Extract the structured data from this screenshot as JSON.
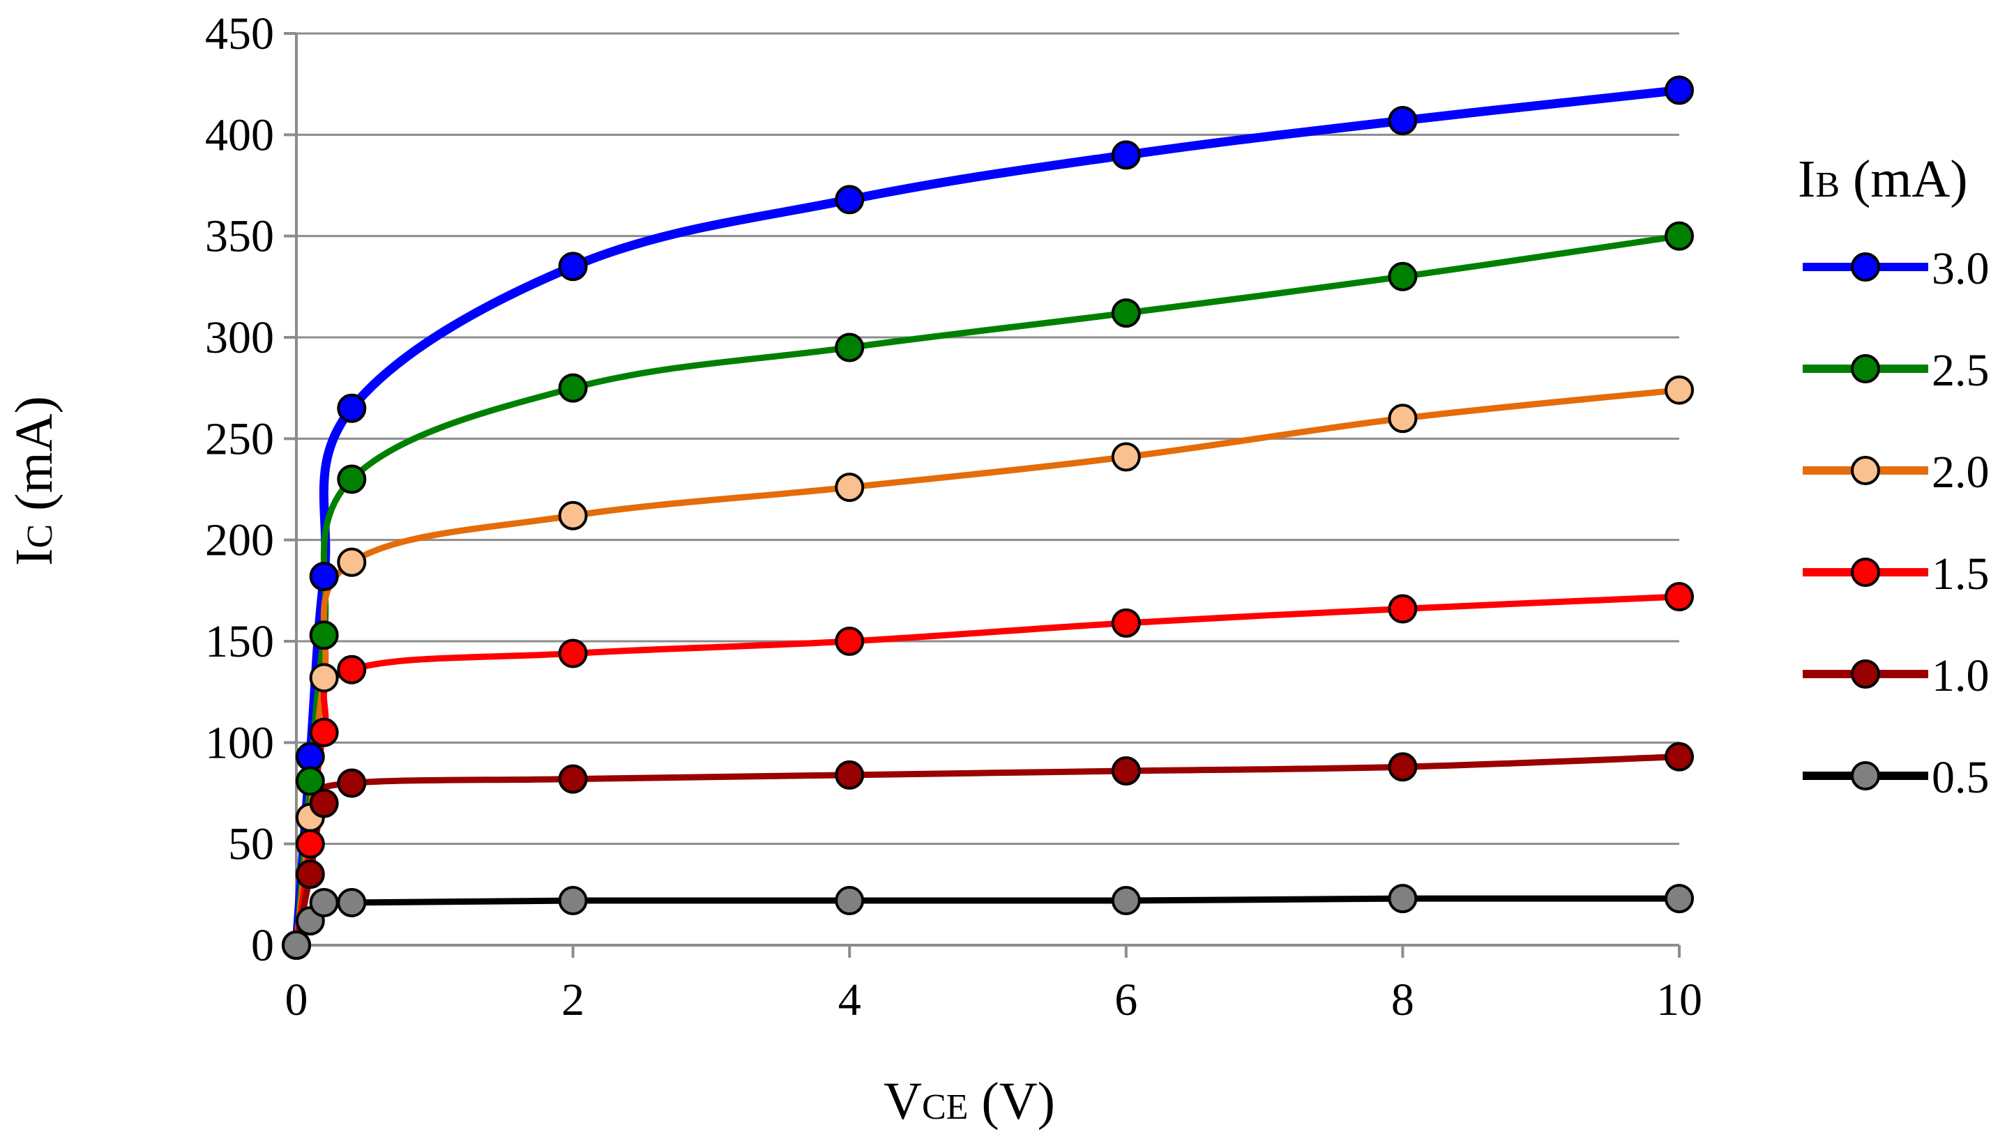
{
  "chart_data": {
    "type": "line",
    "title": "",
    "xlabel": {
      "main": "V",
      "sub": "CE",
      "unit": " (V)"
    },
    "ylabel": {
      "main": "I",
      "sub": "C",
      "unit": " (mA)"
    },
    "xlim": [
      0,
      10
    ],
    "ylim": [
      0,
      450
    ],
    "xticks": [
      0,
      2,
      4,
      6,
      8,
      10
    ],
    "xtick_labels": [
      "0",
      "2",
      "4",
      "6",
      "8",
      "10"
    ],
    "yticks": [
      0,
      50,
      100,
      150,
      200,
      250,
      300,
      350,
      400,
      450
    ],
    "ytick_labels": [
      "0",
      "50",
      "100",
      "150",
      "200",
      "250",
      "300",
      "350",
      "400",
      "450"
    ],
    "grid": "horizontal",
    "legend": {
      "placement": "right",
      "title": {
        "main": "I",
        "sub": "B",
        "unit": " (mA)"
      }
    },
    "series": [
      {
        "name": "3.0",
        "line_color": "#0000FF",
        "marker_color": "#0000FF",
        "x": [
          0,
          0.1,
          0.2,
          0.4,
          2,
          4,
          6,
          8,
          10
        ],
        "y": [
          0,
          93,
          182,
          265,
          335,
          368,
          390,
          407,
          422
        ]
      },
      {
        "name": "2.5",
        "line_color": "#008000",
        "marker_color": "#008000",
        "x": [
          0,
          0.1,
          0.2,
          0.4,
          2,
          4,
          6,
          8,
          10
        ],
        "y": [
          0,
          81,
          153,
          230,
          275,
          295,
          312,
          330,
          350
        ]
      },
      {
        "name": "2.0",
        "line_color": "#E46C0A",
        "marker_color": "#FAC090",
        "x": [
          0,
          0.1,
          0.2,
          0.4,
          2,
          4,
          6,
          8,
          10
        ],
        "y": [
          0,
          63,
          132,
          189,
          212,
          226,
          241,
          260,
          274
        ]
      },
      {
        "name": "1.5",
        "line_color": "#FF0000",
        "marker_color": "#FF0000",
        "x": [
          0,
          0.1,
          0.2,
          0.4,
          2,
          4,
          6,
          8,
          10
        ],
        "y": [
          0,
          50,
          105,
          136,
          144,
          150,
          159,
          166,
          172
        ]
      },
      {
        "name": "1.0",
        "line_color": "#990000",
        "marker_color": "#990000",
        "x": [
          0,
          0.1,
          0.2,
          0.4,
          2,
          4,
          6,
          8,
          10
        ],
        "y": [
          0,
          35,
          70,
          80,
          82,
          84,
          86,
          88,
          93
        ]
      },
      {
        "name": "0.5",
        "line_color": "#000000",
        "marker_color": "#808080",
        "x": [
          0,
          0.1,
          0.2,
          0.4,
          2,
          4,
          6,
          8,
          10
        ],
        "y": [
          0,
          12,
          21,
          21,
          22,
          22,
          22,
          23,
          23
        ]
      }
    ]
  }
}
